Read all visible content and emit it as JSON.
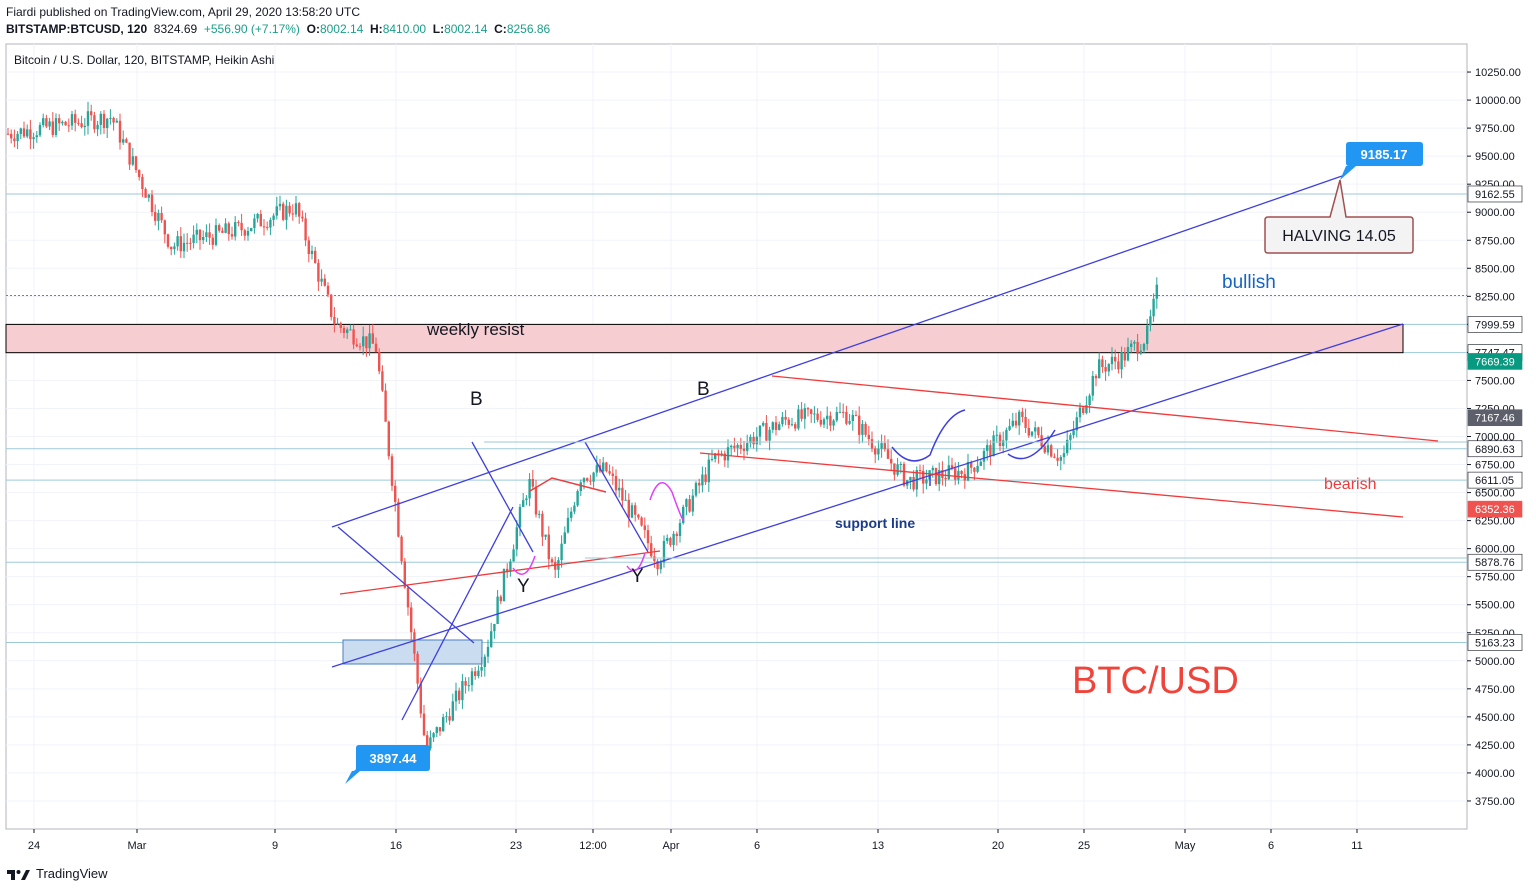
{
  "header": {
    "publisher_line": "Fiardi published on TradingView.com, April 29, 2020 13:58:20 UTC",
    "symbol": "BITSTAMP:BTCUSD, 120",
    "last": "8324.69",
    "change": "+556.90 (+7.17%)",
    "o_label": "O:",
    "o": "8002.14",
    "h_label": "H:",
    "h": "8410.00",
    "l_label": "L:",
    "l": "8002.14",
    "c_label": "C:",
    "c": "8256.86"
  },
  "footer": {
    "brand": "TradingView"
  },
  "colors": {
    "up": "#26a69a",
    "down": "#ef5350",
    "trend": "#3f3fe0",
    "red_line": "#ef3b3b",
    "magenta": "#e040fb",
    "label_blue": "#2196f3",
    "teal_label": "#089981",
    "grey_label": "#5d606b"
  },
  "chart_data": {
    "type": "candlestick",
    "title": "Bitcoin / U.S. Dollar, 120, BITSTAMP, Heikin Ashi",
    "ylim": [
      3500,
      10500
    ],
    "y_ticks": [
      3750,
      4000,
      4250,
      4500,
      4750,
      5000,
      5250,
      5500,
      5750,
      6000,
      6250,
      6500,
      6750,
      7000,
      7250,
      7500,
      7750,
      8000,
      8250,
      8500,
      8750,
      9000,
      9250,
      9500,
      9750,
      10000,
      10250
    ],
    "x_tick_labels": [
      "24",
      "Mar",
      "9",
      "16",
      "23",
      "12:00",
      "Apr",
      "6",
      "13",
      "20",
      "25",
      "May",
      "6",
      "11"
    ],
    "price_tags": [
      {
        "value": "9162.55",
        "kind": "line"
      },
      {
        "value": "7999.59",
        "kind": "line"
      },
      {
        "value": "7747.47",
        "kind": "line"
      },
      {
        "value": "7669.39",
        "kind": "teal"
      },
      {
        "value": "7167.46",
        "kind": "grey"
      },
      {
        "value": "6890.63",
        "kind": "line"
      },
      {
        "value": "6611.05",
        "kind": "line"
      },
      {
        "value": "6352.36",
        "kind": "red"
      },
      {
        "value": "5878.76",
        "kind": "line"
      },
      {
        "value": "5163.23",
        "kind": "line"
      }
    ],
    "path_close": [
      [
        "24",
        9700
      ],
      [
        "24",
        9850
      ],
      [
        "Mar",
        8700
      ],
      [
        "Mar",
        8850
      ],
      [
        "9",
        9050
      ],
      [
        "9",
        8000
      ],
      [
        "9",
        7800
      ],
      [
        "16",
        4200
      ],
      [
        "16",
        5100
      ],
      [
        "23",
        6600
      ],
      [
        "23",
        5750
      ],
      [
        "23",
        6650
      ],
      [
        "12:00",
        6700
      ],
      [
        "12:00",
        6300
      ],
      [
        "12:00",
        5900
      ],
      [
        "Apr",
        6800
      ],
      [
        "6",
        7150
      ],
      [
        "6",
        7200
      ],
      [
        "13",
        6600
      ],
      [
        "13",
        6700
      ],
      [
        "20",
        7150
      ],
      [
        "20",
        6800
      ],
      [
        "25",
        7600
      ],
      [
        "25",
        7700
      ],
      [
        "25",
        7900
      ],
      [
        "25",
        8400
      ]
    ],
    "annotations": {
      "zone_label": "weekly resist",
      "bullish": "bullish",
      "bearish": "bearish",
      "support": "support line",
      "big_label": "BTC/USD",
      "halving": "HALVING 14.05",
      "callout_high": "9185.17",
      "callout_low": "3897.44",
      "b1": "B",
      "b2": "B",
      "y1": "Y",
      "y2": "Y"
    }
  }
}
